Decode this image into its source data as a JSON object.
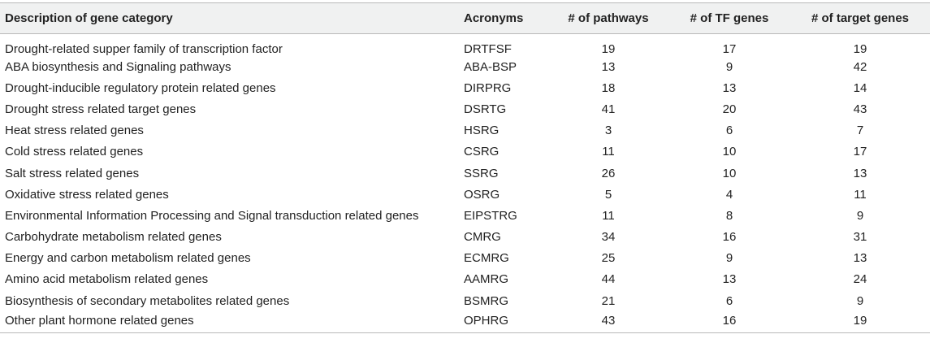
{
  "table": {
    "headers": [
      "Description of gene category",
      "Acronyms",
      "# of pathways",
      "# of TF genes",
      "# of target genes"
    ],
    "rows": [
      [
        "Drought-related supper family of transcription factor",
        "DRTFSF",
        "19",
        "17",
        "19"
      ],
      [
        "ABA biosynthesis and Signaling pathways",
        "ABA-BSP",
        "13",
        "9",
        "42"
      ],
      [
        "Drought-inducible regulatory protein related genes",
        "DIRPRG",
        "18",
        "13",
        "14"
      ],
      [
        "Drought stress related target genes",
        "DSRTG",
        "41",
        "20",
        "43"
      ],
      [
        "Heat stress related genes",
        "HSRG",
        "3",
        "6",
        "7"
      ],
      [
        "Cold stress related genes",
        "CSRG",
        "11",
        "10",
        "17"
      ],
      [
        "Salt stress related genes",
        "SSRG",
        "26",
        "10",
        "13"
      ],
      [
        "Oxidative stress related genes",
        "OSRG",
        "5",
        "4",
        "11"
      ],
      [
        "Environmental Information Processing and Signal transduction related genes",
        "EIPSTRG",
        "11",
        "8",
        "9"
      ],
      [
        "Carbohydrate metabolism related genes",
        "CMRG",
        "34",
        "16",
        "31"
      ],
      [
        "Energy and carbon metabolism related genes",
        "ECMRG",
        "25",
        "9",
        "13"
      ],
      [
        "Amino acid metabolism related genes",
        "AAMRG",
        "44",
        "13",
        "24"
      ],
      [
        "Biosynthesis of secondary metabolites related genes",
        "BSMRG",
        "21",
        "6",
        "9"
      ],
      [
        "Other plant hormone related genes",
        "OPHRG",
        "43",
        "16",
        "19"
      ]
    ]
  }
}
